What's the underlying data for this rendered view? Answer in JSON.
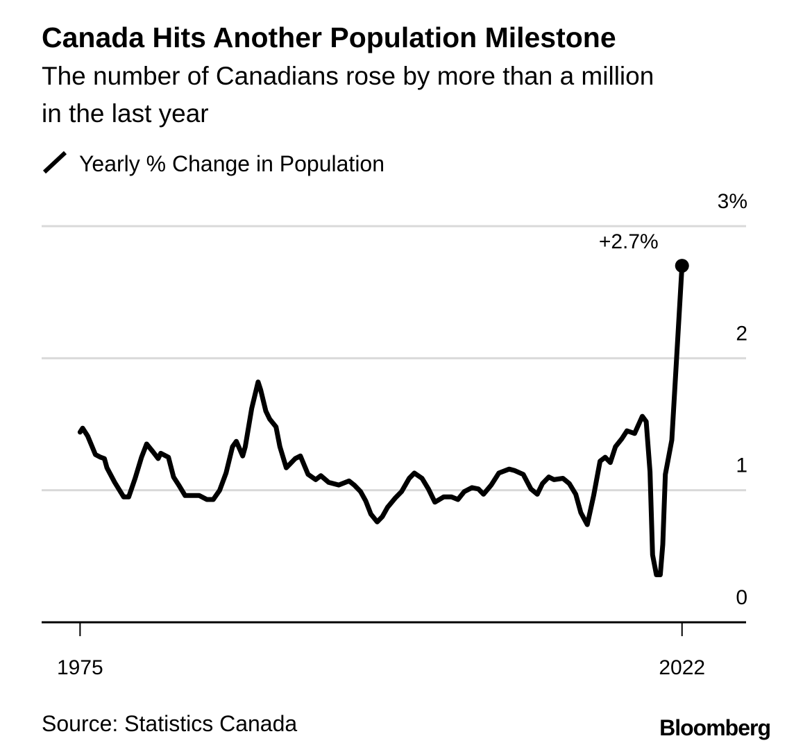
{
  "chart_data": {
    "type": "line",
    "title": "Canada Hits Another Population Milestone",
    "subtitle": [
      "The number of Canadians rose by more than a million",
      "in the last year"
    ],
    "x": [
      1975.0,
      1975.2,
      1975.6,
      1976.2,
      1976.6,
      1976.9,
      1977.1,
      1977.7,
      1978.4,
      1978.8,
      1979.3,
      1979.8,
      1980.2,
      1980.7,
      1981.1,
      1981.3,
      1981.9,
      1982.3,
      1982.7,
      1983.2,
      1984.3,
      1984.9,
      1985.4,
      1985.9,
      1986.4,
      1986.9,
      1987.2,
      1987.7,
      1987.9,
      1988.4,
      1988.9,
      1989.1,
      1989.5,
      1989.8,
      1990.3,
      1990.6,
      1991.1,
      1991.5,
      1991.8,
      1992.2,
      1992.8,
      1993.4,
      1993.8,
      1994.4,
      1995.2,
      1996.0,
      1996.4,
      1996.9,
      1997.3,
      1997.7,
      1998.2,
      1998.6,
      1999.0,
      1999.6,
      2000.1,
      2000.7,
      2001.1,
      2001.7,
      2002.2,
      2002.7,
      2003.4,
      2004.0,
      2004.5,
      2005.0,
      2005.6,
      2006.1,
      2006.5,
      2007.1,
      2007.7,
      2008.5,
      2008.9,
      2009.6,
      2010.2,
      2010.7,
      2011.1,
      2011.6,
      2012.0,
      2012.7,
      2013.2,
      2013.7,
      2014.1,
      2014.6,
      2015.1,
      2015.6,
      2016.0,
      2016.4,
      2016.8,
      2017.3,
      2017.7,
      2018.3,
      2018.9,
      2019.2,
      2019.5,
      2019.7,
      2020.0,
      2020.3,
      2020.5,
      2020.7,
      2021.2,
      2022.0
    ],
    "series": [
      {
        "name": "Yearly % Change in Population",
        "color": "#000000",
        "values": [
          1.44,
          1.47,
          1.41,
          1.27,
          1.25,
          1.24,
          1.17,
          1.06,
          0.95,
          0.95,
          1.09,
          1.25,
          1.35,
          1.29,
          1.24,
          1.28,
          1.25,
          1.1,
          1.04,
          0.96,
          0.96,
          0.93,
          0.93,
          1.0,
          1.13,
          1.33,
          1.37,
          1.26,
          1.33,
          1.62,
          1.82,
          1.76,
          1.6,
          1.54,
          1.48,
          1.33,
          1.17,
          1.21,
          1.24,
          1.26,
          1.12,
          1.08,
          1.11,
          1.06,
          1.04,
          1.07,
          1.04,
          0.99,
          0.92,
          0.82,
          0.76,
          0.8,
          0.87,
          0.94,
          0.99,
          1.09,
          1.13,
          1.09,
          1.01,
          0.91,
          0.95,
          0.95,
          0.93,
          0.99,
          1.02,
          1.01,
          0.97,
          1.04,
          1.13,
          1.16,
          1.15,
          1.12,
          1.01,
          0.97,
          1.05,
          1.1,
          1.08,
          1.09,
          1.05,
          0.97,
          0.83,
          0.74,
          0.96,
          1.22,
          1.25,
          1.21,
          1.33,
          1.39,
          1.45,
          1.43,
          1.56,
          1.52,
          1.14,
          0.51,
          0.36,
          0.36,
          0.59,
          1.12,
          1.38,
          2.7
        ]
      }
    ],
    "annotation": "+2.7%",
    "xlim": [
      1972,
      2027
    ],
    "xticks": [
      1975,
      2022
    ],
    "ylim": [
      0,
      3
    ],
    "yticks": [
      0,
      1,
      2,
      {
        "value": 3,
        "label": "3%"
      }
    ],
    "grid": true,
    "source": "Source: Statistics Canada",
    "brand": "Bloomberg"
  }
}
